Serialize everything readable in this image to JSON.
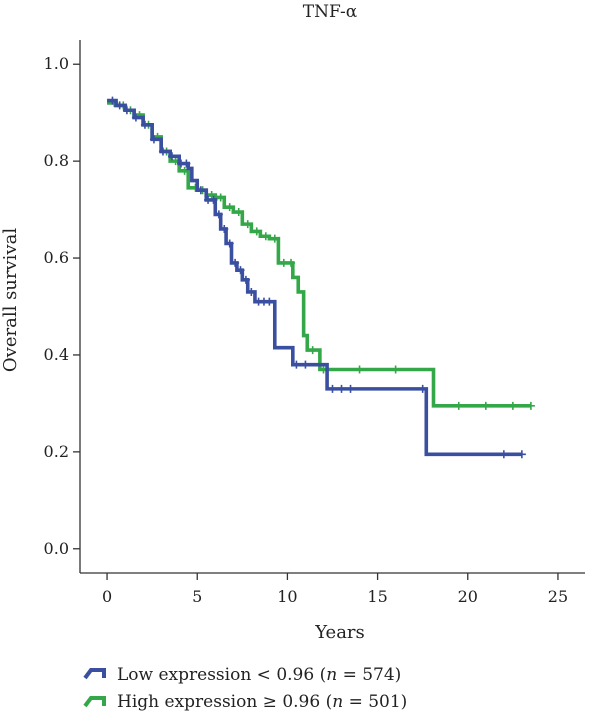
{
  "chart_data": {
    "type": "line",
    "title": "TNF-α",
    "xlabel": "Years",
    "ylabel": "Overall survival",
    "xlim": [
      -1.5,
      26.5
    ],
    "ylim": [
      -0.05,
      1.05
    ],
    "x_ticks": [
      0,
      5,
      10,
      15,
      20,
      25
    ],
    "y_ticks": [
      0.0,
      0.2,
      0.4,
      0.6,
      0.8,
      1.0
    ],
    "x_tick_labels": [
      "0",
      "5",
      "10",
      "15",
      "20",
      "25"
    ],
    "y_tick_labels": [
      "0.0",
      "0.2",
      "0.4",
      "0.6",
      "0.8",
      "1.0"
    ],
    "grid": false,
    "legend_position": "bottom-left",
    "series": [
      {
        "name": "Low expression < 0.96 (n = 574)",
        "legend_prefix": "Low expression < 0.96 (",
        "legend_n": "n",
        "legend_suffix": " = 574)",
        "color": "#3a4fa0",
        "points": [
          [
            0,
            0.925
          ],
          [
            0.5,
            0.915
          ],
          [
            1.0,
            0.905
          ],
          [
            1.5,
            0.89
          ],
          [
            2.0,
            0.875
          ],
          [
            2.5,
            0.845
          ],
          [
            3.0,
            0.82
          ],
          [
            3.5,
            0.81
          ],
          [
            4.0,
            0.795
          ],
          [
            4.5,
            0.785
          ],
          [
            4.7,
            0.76
          ],
          [
            5.0,
            0.74
          ],
          [
            5.5,
            0.72
          ],
          [
            6.0,
            0.69
          ],
          [
            6.3,
            0.66
          ],
          [
            6.6,
            0.63
          ],
          [
            6.9,
            0.59
          ],
          [
            7.2,
            0.575
          ],
          [
            7.5,
            0.555
          ],
          [
            7.8,
            0.53
          ],
          [
            8.2,
            0.51
          ],
          [
            8.9,
            0.51
          ],
          [
            9.3,
            0.415
          ],
          [
            10.0,
            0.415
          ],
          [
            10.3,
            0.38
          ],
          [
            11.6,
            0.38
          ],
          [
            12.2,
            0.33
          ],
          [
            17.6,
            0.33
          ],
          [
            17.7,
            0.195
          ],
          [
            23.0,
            0.195
          ]
        ],
        "censor": [
          0.3,
          0.7,
          1.1,
          1.6,
          2.1,
          2.6,
          3.1,
          3.6,
          4.1,
          4.4,
          5.2,
          5.6,
          5.9,
          6.2,
          6.5,
          6.8,
          7.1,
          7.4,
          7.7,
          8.0,
          8.4,
          8.7,
          9.0,
          10.5,
          11.0,
          12.5,
          13.0,
          13.5,
          17.5,
          22.0,
          23.0
        ]
      },
      {
        "name": "High expression ≥ 0.96 (n = 501)",
        "legend_prefix": "High expression ≥ 0.96 (",
        "legend_n": "n",
        "legend_suffix": " = 501)",
        "color": "#34a848",
        "points": [
          [
            0,
            0.92
          ],
          [
            0.5,
            0.915
          ],
          [
            1.0,
            0.905
          ],
          [
            1.5,
            0.895
          ],
          [
            2.0,
            0.875
          ],
          [
            2.5,
            0.85
          ],
          [
            3.0,
            0.82
          ],
          [
            3.5,
            0.8
          ],
          [
            4.0,
            0.78
          ],
          [
            4.5,
            0.745
          ],
          [
            5.0,
            0.74
          ],
          [
            5.5,
            0.73
          ],
          [
            6.0,
            0.725
          ],
          [
            6.5,
            0.705
          ],
          [
            7.0,
            0.695
          ],
          [
            7.5,
            0.67
          ],
          [
            8.0,
            0.655
          ],
          [
            8.5,
            0.645
          ],
          [
            9.0,
            0.64
          ],
          [
            9.5,
            0.59
          ],
          [
            10.0,
            0.59
          ],
          [
            10.3,
            0.56
          ],
          [
            10.6,
            0.53
          ],
          [
            10.9,
            0.44
          ],
          [
            11.1,
            0.41
          ],
          [
            11.7,
            0.41
          ],
          [
            11.8,
            0.37
          ],
          [
            18.0,
            0.37
          ],
          [
            18.1,
            0.295
          ],
          [
            23.5,
            0.295
          ]
        ],
        "censor": [
          0.4,
          0.9,
          1.3,
          1.8,
          2.3,
          2.8,
          3.3,
          3.8,
          4.3,
          4.9,
          5.3,
          5.8,
          6.3,
          6.8,
          7.3,
          7.8,
          8.3,
          8.8,
          9.3,
          9.8,
          10.2,
          11.4,
          12.0,
          14.0,
          16.0,
          19.5,
          21.0,
          22.5,
          23.5
        ]
      }
    ]
  }
}
